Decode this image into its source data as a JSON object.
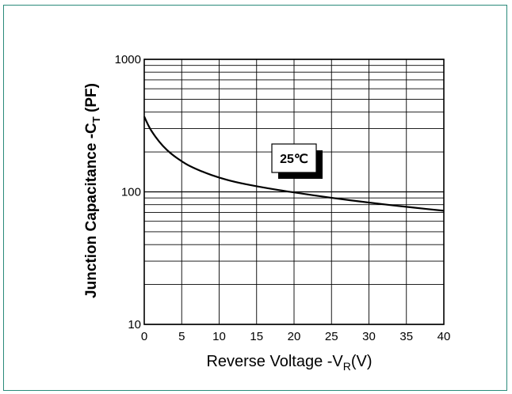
{
  "chart_data": {
    "type": "line",
    "title": "",
    "xlabel": "Reverse Voltage -V",
    "xlabel_sub": "R",
    "xlabel_unit": "(V)",
    "ylabel": "Junction Capacitance -C",
    "ylabel_sub": "T",
    "ylabel_unit": " (PF)",
    "x_scale": "linear",
    "y_scale": "log",
    "xlim": [
      0,
      40
    ],
    "ylim": [
      10,
      1000
    ],
    "x_ticks": [
      "0",
      "5",
      "10",
      "15",
      "20",
      "25",
      "30",
      "35",
      "40"
    ],
    "y_ticks": [
      "10",
      "100",
      "1000"
    ],
    "grid": true,
    "annotation": "25℃",
    "series": [
      {
        "x": [
          0,
          0.5,
          1,
          2,
          3,
          4,
          5,
          6,
          8,
          10,
          12,
          15,
          18,
          20,
          25,
          30,
          35,
          40
        ],
        "y": [
          370,
          320,
          285,
          238,
          207,
          186,
          170,
          157,
          140,
          128,
          119,
          110,
          103,
          99,
          90,
          83,
          77,
          72
        ]
      }
    ]
  }
}
